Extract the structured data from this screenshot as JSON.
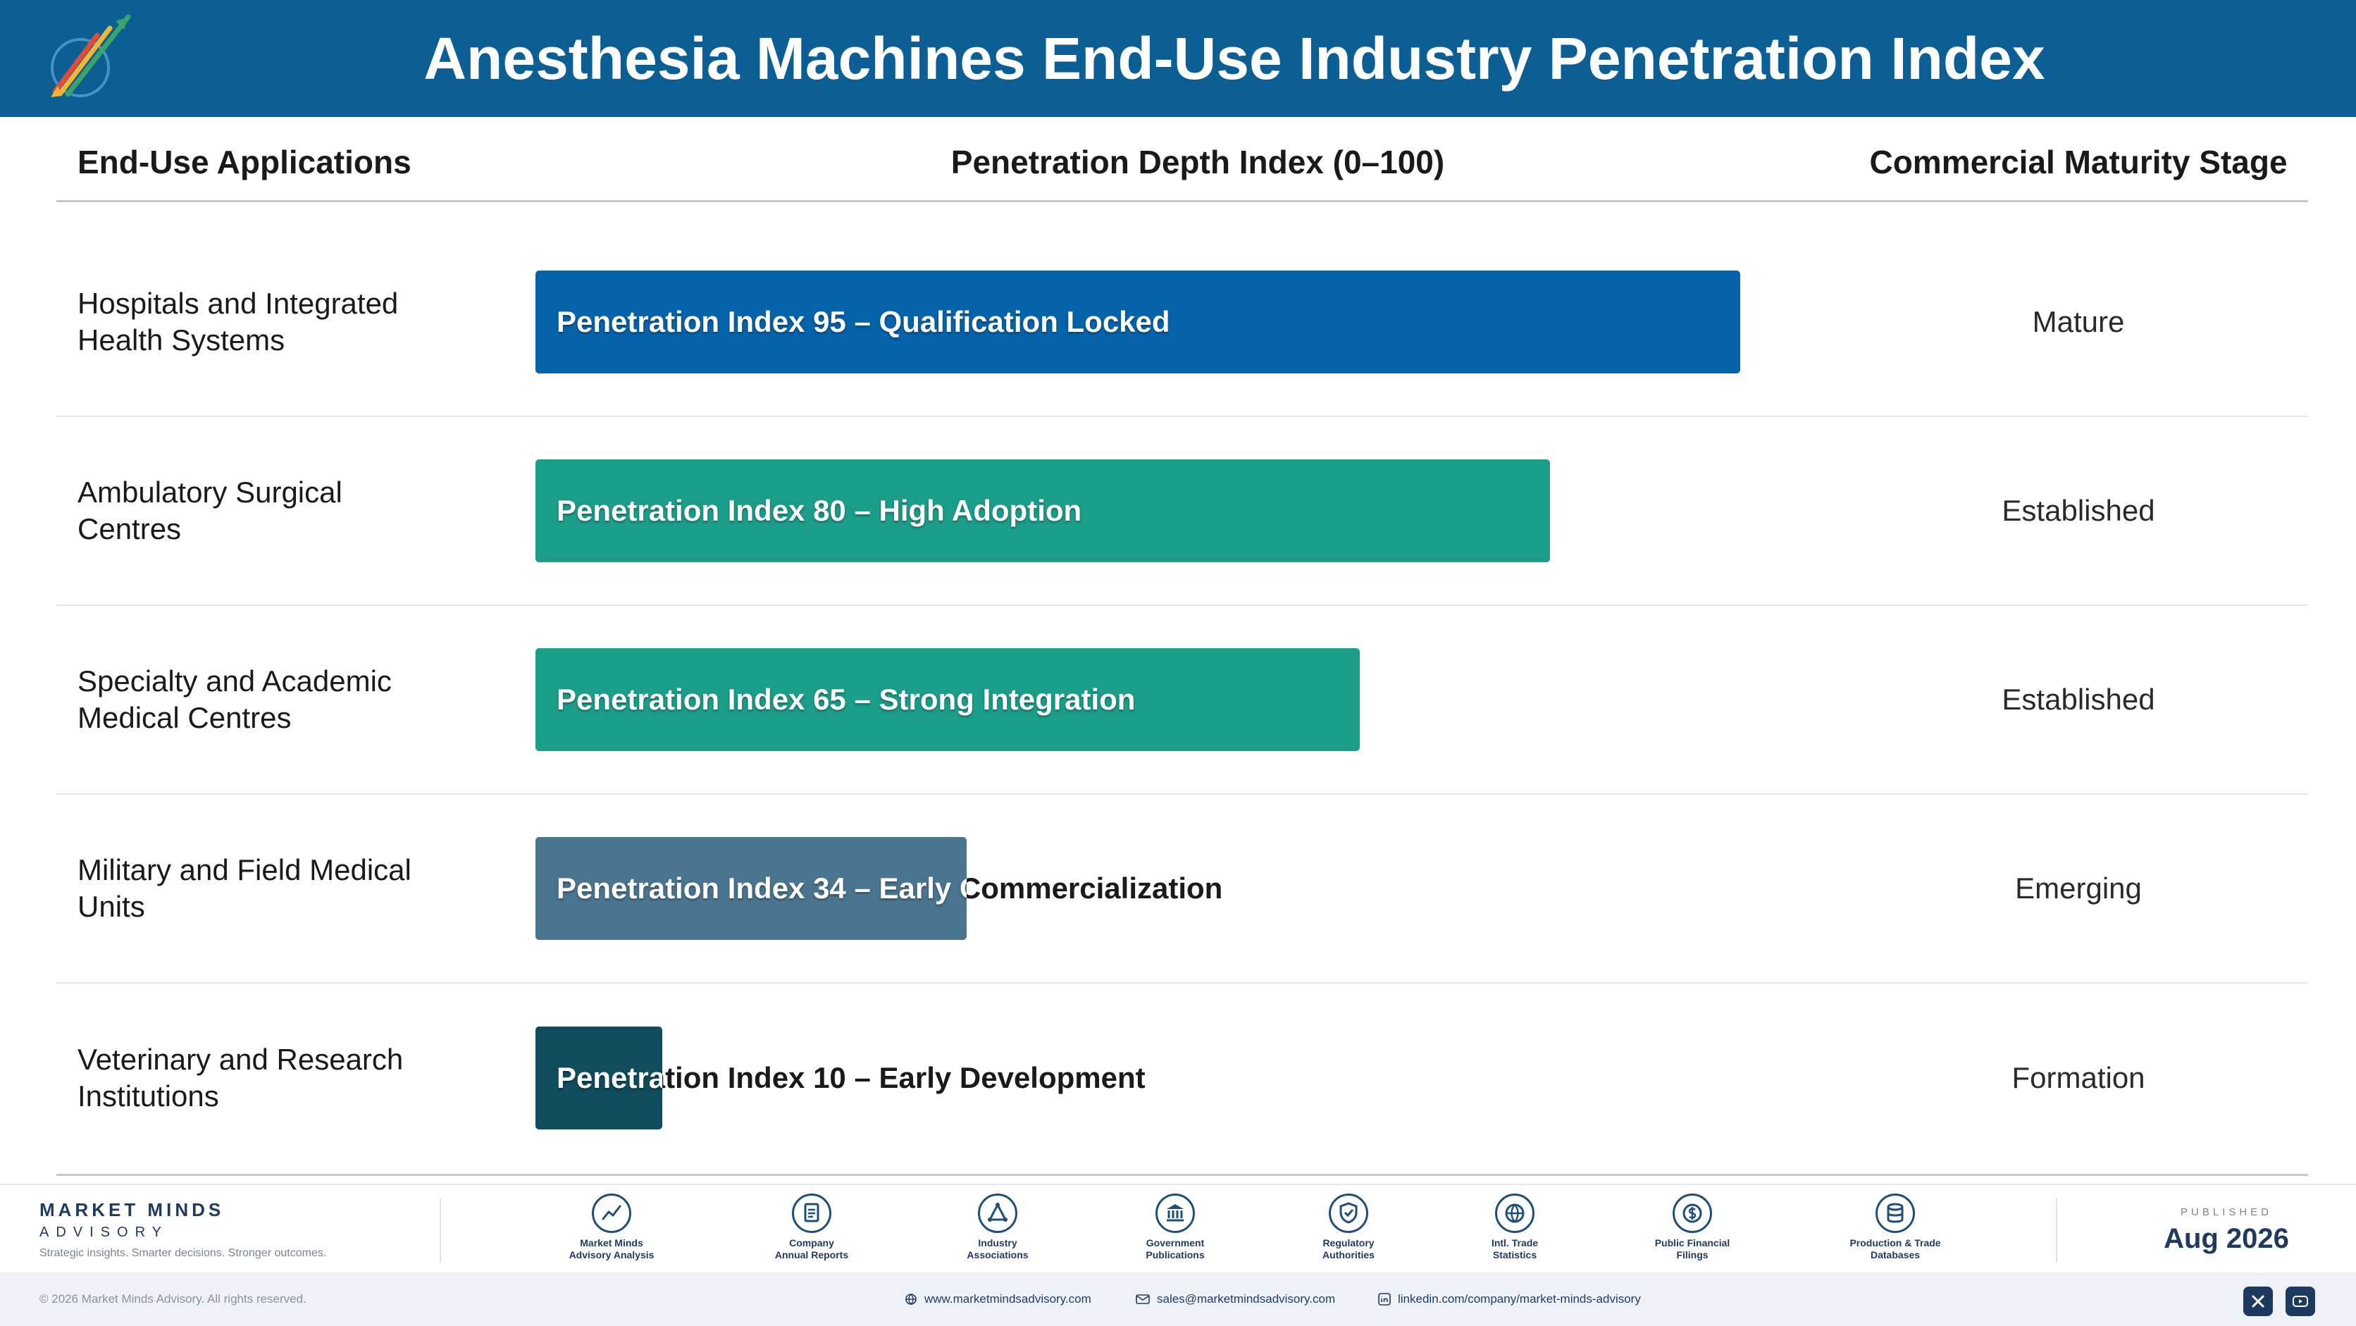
{
  "header": {
    "title": "Anesthesia Machines End-Use Industry Penetration Index"
  },
  "columns": {
    "applications": "End-Use Applications",
    "penetration": "Penetration Depth Index (0–100)",
    "stage": "Commercial Maturity Stage"
  },
  "colors": {
    "header_bg": "#0c5f94",
    "mature": "#0563aa",
    "established": "#1a9e8a",
    "emerging": "#4a7590",
    "formation": "#0f4c5c"
  },
  "chart_data": {
    "type": "bar",
    "orientation": "horizontal",
    "xlim": [
      0,
      100
    ],
    "categories": [
      "Hospitals and Integrated Health Systems",
      "Ambulatory Surgical Centres",
      "Specialty and Academic Medical Centres",
      "Military and Field Medical Units",
      "Veterinary and Research Institutions"
    ],
    "values": [
      95,
      80,
      65,
      34,
      10
    ],
    "rows": [
      {
        "label_line1": "Hospitals and Integrated",
        "label_line2": "Health Systems",
        "value": 95,
        "bar_label": "Penetration Index 95 – Qualification Locked",
        "stage": "Mature",
        "color": "#0563aa"
      },
      {
        "label_line1": "Ambulatory Surgical",
        "label_line2": "Centres",
        "value": 80,
        "bar_label": "Penetration Index 80 – High Adoption",
        "stage": "Established",
        "color": "#1a9e8a"
      },
      {
        "label_line1": "Specialty and Academic",
        "label_line2": "Medical Centres",
        "value": 65,
        "bar_label": "Penetration Index 65 – Strong Integration",
        "stage": "Established",
        "color": "#1a9e8a"
      },
      {
        "label_line1": "Military and Field Medical",
        "label_line2": "Units",
        "value": 34,
        "bar_label": "Penetration Index 34 – Early Commercialization",
        "stage": "Emerging",
        "color": "#4a7590"
      },
      {
        "label_line1": "Veterinary and Research",
        "label_line2": "Institutions",
        "value": 10,
        "bar_label": "Penetration Index 10 – Early Development",
        "stage": "Formation",
        "color": "#0f4c5c"
      }
    ]
  },
  "footer": {
    "brand_name": "MARKET MINDS",
    "brand_sub": "ADVISORY",
    "brand_tag": "Strategic insights. Smarter decisions. Stronger outcomes.",
    "sources": [
      {
        "label": "Market Minds\nAdvisory Analysis",
        "icon": "trend-chart-icon"
      },
      {
        "label": "Company\nAnnual Reports",
        "icon": "document-icon"
      },
      {
        "label": "Industry\nAssociations",
        "icon": "network-icon"
      },
      {
        "label": "Government\nPublications",
        "icon": "government-building-icon"
      },
      {
        "label": "Regulatory\nAuthorities",
        "icon": "shield-check-icon"
      },
      {
        "label": "Intl. Trade\nStatistics",
        "icon": "globe-icon"
      },
      {
        "label": "Public Financial\nFilings",
        "icon": "coin-icon"
      },
      {
        "label": "Production & Trade\nDatabases",
        "icon": "database-icon"
      }
    ],
    "published_label": "PUBLISHED",
    "published_date": "Aug 2026",
    "copyright": "© 2026 Market Minds Advisory. All rights reserved.",
    "website": "www.marketmindsadvisory.com",
    "email": "sales@marketmindsadvisory.com",
    "linkedin": "linkedin.com/company/market-minds-advisory"
  }
}
